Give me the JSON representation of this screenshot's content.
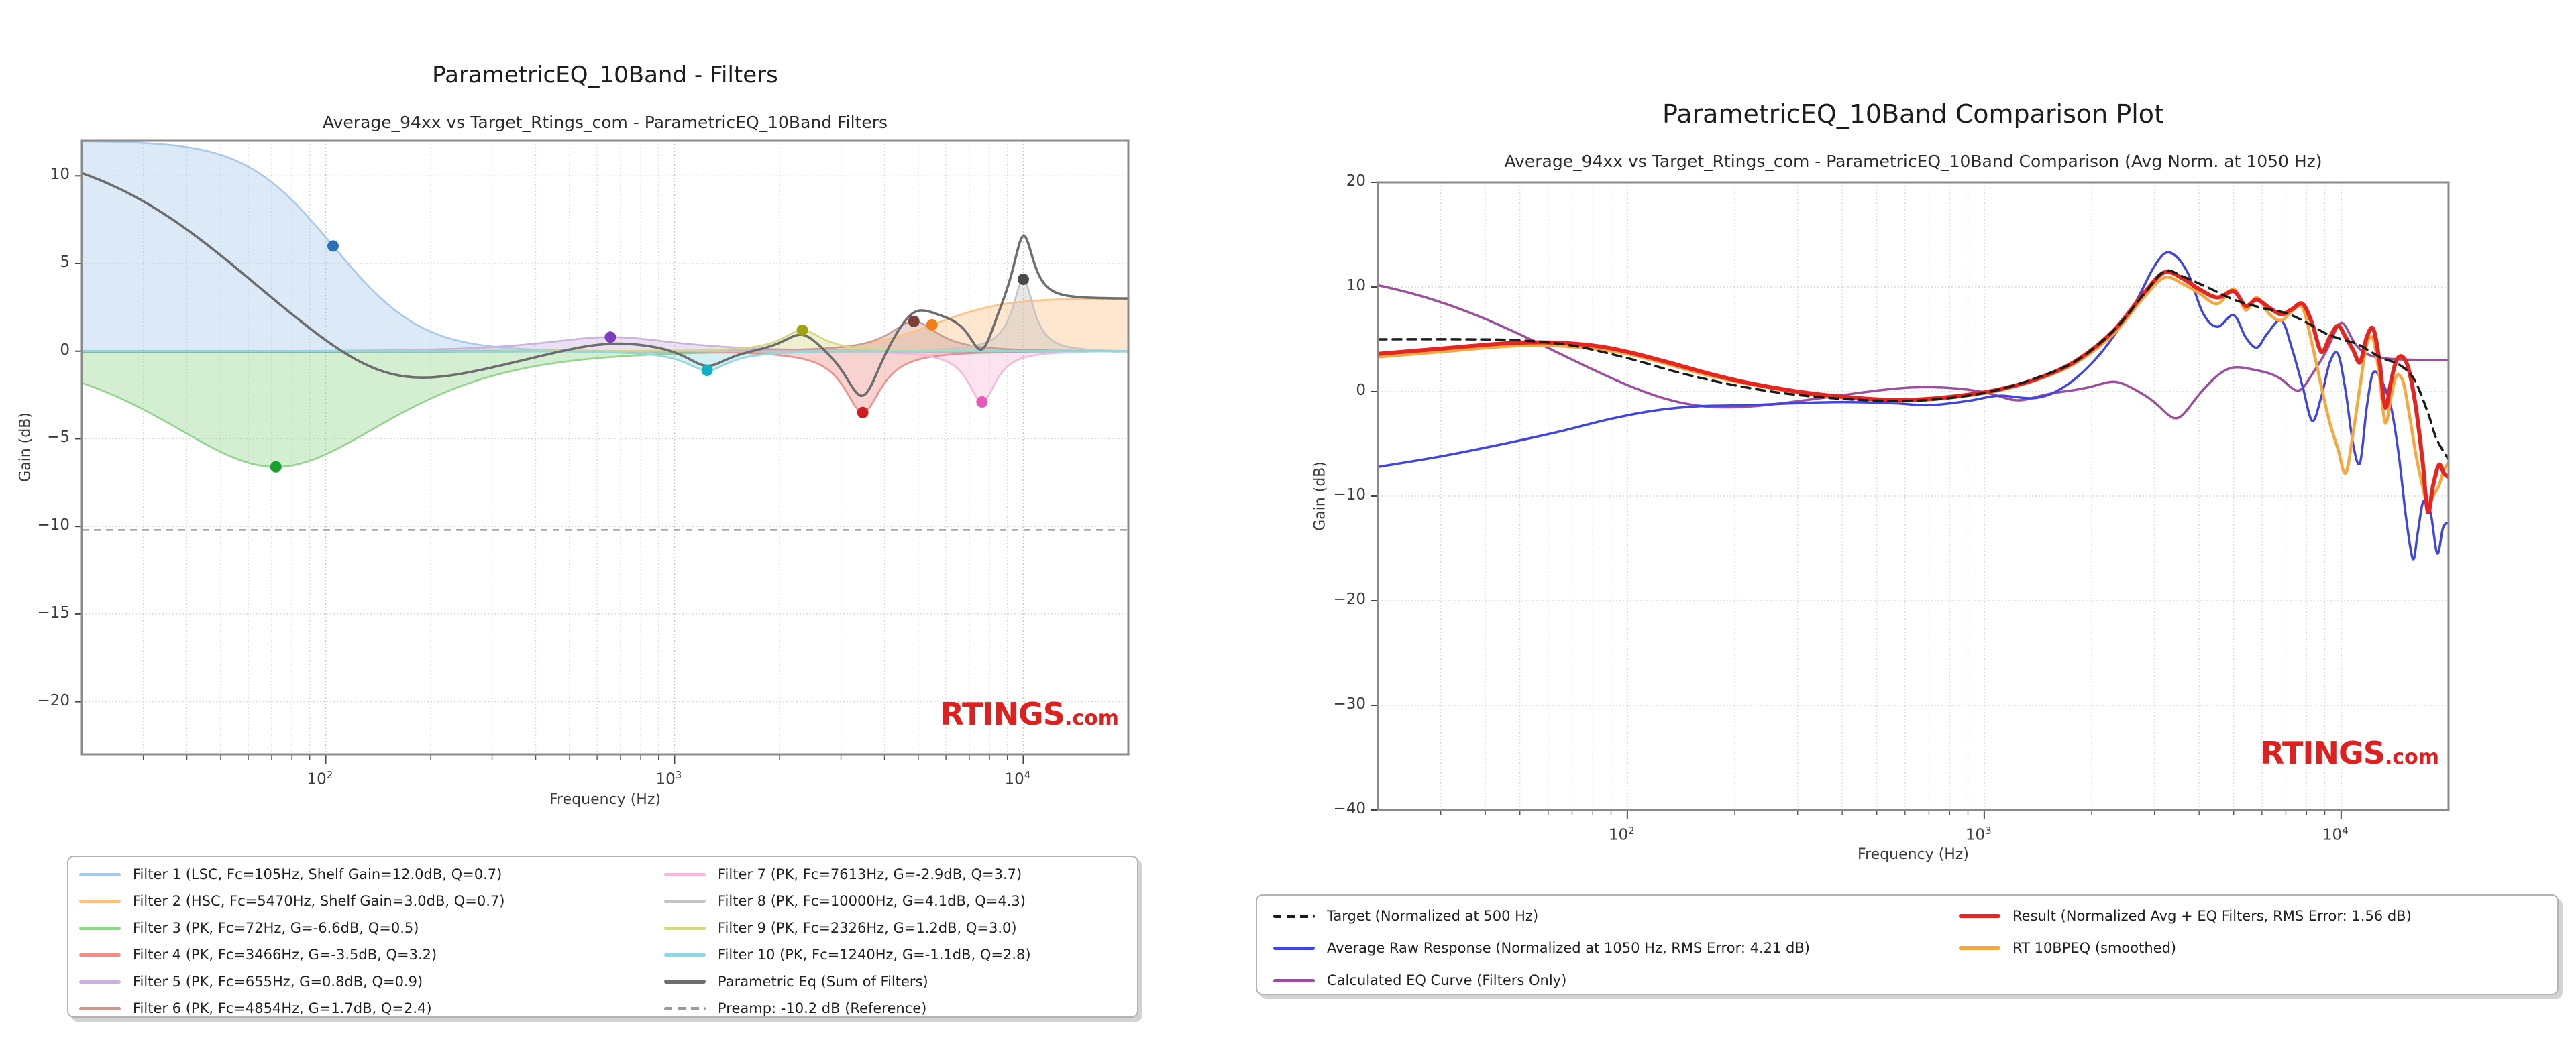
{
  "page": {
    "background": "#ffffff"
  },
  "chart_data": [
    {
      "id": "filters-plot",
      "type": "line",
      "title": "ParametricEQ_10Band - Filters",
      "subtitle": "Average_94xx vs Target_Rtings_com - ParametricEQ_10Band Filters",
      "xlabel": "Frequency (Hz)",
      "ylabel": "Gain (dB)",
      "x_scale": "log",
      "x_range_hz": [
        20,
        20000
      ],
      "x_tick_exponents": [
        2,
        3,
        4
      ],
      "y_range_db": [
        -23,
        12
      ],
      "y_ticks": [
        10,
        5,
        0,
        -5,
        -10,
        -15,
        -20
      ],
      "grid": true,
      "legend_position": "below",
      "zero_line_color": "#2e8b6e",
      "watermark_main": "RTINGS",
      "watermark_sub": ".com",
      "watermark_color": "#e0201e",
      "filters": [
        {
          "label": "Filter 1 (LSC, Fc=105Hz, Shelf Gain=12.0dB, Q=0.7)",
          "type": "LSC",
          "fc_hz": 105,
          "gain_db": 12.0,
          "q": 0.7,
          "line_color": "#a8c8e8",
          "marker_color": "#2a72b5"
        },
        {
          "label": "Filter 2 (HSC, Fc=5470Hz, Shelf Gain=3.0dB, Q=0.7)",
          "type": "HSC",
          "fc_hz": 5470,
          "gain_db": 3.0,
          "q": 0.7,
          "line_color": "#ffc184",
          "marker_color": "#f07e12"
        },
        {
          "label": "Filter 3 (PK, Fc=72Hz, G=-6.6dB, Q=0.5)",
          "type": "PK",
          "fc_hz": 72,
          "gain_db": -6.6,
          "q": 0.5,
          "line_color": "#93d48c",
          "marker_color": "#18a02c"
        },
        {
          "label": "Filter 4 (PK, Fc=3466Hz, G=-3.5dB, Q=3.2)",
          "type": "PK",
          "fc_hz": 3466,
          "gain_db": -3.5,
          "q": 3.2,
          "line_color": "#ee8e88",
          "marker_color": "#cf1c1c"
        },
        {
          "label": "Filter 5 (PK, Fc=655Hz, G=0.8dB, Q=0.9)",
          "type": "PK",
          "fc_hz": 655,
          "gain_db": 0.8,
          "q": 0.9,
          "line_color": "#c9b3dd",
          "marker_color": "#7d3fbe"
        },
        {
          "label": "Filter 6 (PK, Fc=4854Hz, G=1.7dB, Q=2.4)",
          "type": "PK",
          "fc_hz": 4854,
          "gain_db": 1.7,
          "q": 2.4,
          "line_color": "#c69c94",
          "marker_color": "#7d4037"
        },
        {
          "label": "Filter 7 (PK, Fc=7613Hz, G=-2.9dB, Q=3.7)",
          "type": "PK",
          "fc_hz": 7613,
          "gain_db": -2.9,
          "q": 3.7,
          "line_color": "#f5b8d8",
          "marker_color": "#e858b8"
        },
        {
          "label": "Filter 8 (PK, Fc=10000Hz, G=4.1dB, Q=4.3)",
          "type": "PK",
          "fc_hz": 10000,
          "gain_db": 4.1,
          "q": 4.3,
          "line_color": "#c4c4c4",
          "marker_color": "#4a4a4a"
        },
        {
          "label": "Filter 9 (PK, Fc=2326Hz, G=1.2dB, Q=3.0)",
          "type": "PK",
          "fc_hz": 2326,
          "gain_db": 1.2,
          "q": 3.0,
          "line_color": "#d6d687",
          "marker_color": "#a2a216"
        },
        {
          "label": "Filter 10 (PK, Fc=1240Hz, G=-1.1dB, Q=2.8)",
          "type": "PK",
          "fc_hz": 1240,
          "gain_db": -1.1,
          "q": 2.8,
          "line_color": "#8fd8e2",
          "marker_color": "#13b0c4"
        }
      ],
      "sum_curve": {
        "label": "Parametric Eq (Sum of Filters)",
        "color": "#6d6d6d"
      },
      "preamp": {
        "label": "Preamp: -10.2 dB (Reference)",
        "value_db": -10.2,
        "color": "#999999"
      }
    },
    {
      "id": "comparison-plot",
      "type": "line",
      "title": "ParametricEQ_10Band Comparison Plot",
      "subtitle": "Average_94xx vs Target_Rtings_com - ParametricEQ_10Band Comparison (Avg Norm. at 1050 Hz)",
      "xlabel": "Frequency (Hz)",
      "ylabel": "Gain (dB)",
      "x_scale": "log",
      "x_range_hz": [
        20,
        20000
      ],
      "x_tick_exponents": [
        2,
        3,
        4
      ],
      "y_range_db": [
        -40,
        20
      ],
      "y_ticks": [
        20,
        10,
        0,
        -10,
        -20,
        -30,
        -40
      ],
      "grid": true,
      "legend_position": "below",
      "watermark_main": "RTINGS",
      "watermark_sub": ".com",
      "watermark_color": "#e0201e",
      "series": [
        {
          "name": "target",
          "label": "Target (Normalized at 500 Hz)",
          "color": "#1b1b1b",
          "dashed": true,
          "width": 3.5,
          "points": [
            [
              20,
              5.0
            ],
            [
              35,
              5.0
            ],
            [
              50,
              4.9
            ],
            [
              70,
              4.4
            ],
            [
              100,
              3.2
            ],
            [
              140,
              1.8
            ],
            [
              200,
              0.6
            ],
            [
              280,
              -0.2
            ],
            [
              400,
              -0.7
            ],
            [
              550,
              -0.9
            ],
            [
              700,
              -0.8
            ],
            [
              900,
              -0.4
            ],
            [
              1100,
              0.2
            ],
            [
              1400,
              1.3
            ],
            [
              1800,
              2.9
            ],
            [
              2300,
              5.8
            ],
            [
              2800,
              9.3
            ],
            [
              3200,
              11.5
            ],
            [
              3600,
              11.0
            ],
            [
              4200,
              10.0
            ],
            [
              5000,
              8.8
            ],
            [
              6000,
              8.0
            ],
            [
              7000,
              7.5
            ],
            [
              8000,
              6.6
            ],
            [
              9000,
              5.6
            ],
            [
              10000,
              5.0
            ],
            [
              11000,
              4.6
            ],
            [
              12000,
              3.9
            ],
            [
              13000,
              3.2
            ],
            [
              14500,
              2.6
            ],
            [
              16000,
              1.2
            ],
            [
              17500,
              -2.0
            ],
            [
              18500,
              -4.5
            ],
            [
              20000,
              -6.5
            ]
          ]
        },
        {
          "name": "average_raw",
          "label": "Average Raw Response (Normalized at 1050 Hz, RMS Error: 4.21 dB)",
          "color": "#4145e0",
          "dashed": false,
          "width": 3.5,
          "points": [
            [
              20,
              -7.2
            ],
            [
              30,
              -6.2
            ],
            [
              45,
              -5.0
            ],
            [
              65,
              -3.8
            ],
            [
              90,
              -2.6
            ],
            [
              120,
              -1.8
            ],
            [
              160,
              -1.4
            ],
            [
              220,
              -1.3
            ],
            [
              300,
              -1.1
            ],
            [
              400,
              -1.0
            ],
            [
              550,
              -1.1
            ],
            [
              700,
              -1.3
            ],
            [
              900,
              -0.9
            ],
            [
              1100,
              -0.4
            ],
            [
              1400,
              -0.6
            ],
            [
              1700,
              0.6
            ],
            [
              2100,
              3.5
            ],
            [
              2600,
              8.0
            ],
            [
              3000,
              12.0
            ],
            [
              3300,
              13.3
            ],
            [
              3700,
              11.5
            ],
            [
              4100,
              7.5
            ],
            [
              4500,
              6.2
            ],
            [
              5000,
              7.3
            ],
            [
              5400,
              5.2
            ],
            [
              5800,
              4.2
            ],
            [
              6200,
              5.5
            ],
            [
              6800,
              6.8
            ],
            [
              7300,
              4.0
            ],
            [
              7800,
              0.5
            ],
            [
              8300,
              -2.8
            ],
            [
              8800,
              -0.5
            ],
            [
              9300,
              2.8
            ],
            [
              9800,
              3.6
            ],
            [
              10300,
              0.0
            ],
            [
              10800,
              -5.0
            ],
            [
              11300,
              -6.8
            ],
            [
              11800,
              -1.5
            ],
            [
              12300,
              1.8
            ],
            [
              13000,
              1.0
            ],
            [
              13800,
              -1.5
            ],
            [
              14500,
              -6.0
            ],
            [
              15200,
              -12.0
            ],
            [
              15900,
              -16.0
            ],
            [
              16400,
              -13.5
            ],
            [
              17000,
              -10.5
            ],
            [
              17800,
              -11.5
            ],
            [
              18600,
              -15.5
            ],
            [
              19300,
              -13.0
            ],
            [
              20000,
              -12.5
            ]
          ]
        },
        {
          "name": "calculated_eq",
          "label": "Calculated EQ Curve (Filters Only)",
          "color": "#9c4f9c",
          "dashed": false,
          "width": 3.5,
          "source": "sum_of_filters",
          "points": []
        },
        {
          "name": "result",
          "label": "Result (Normalized Avg + EQ Filters, RMS Error: 1.56 dB)",
          "color": "#e42522",
          "dashed": false,
          "width": 6,
          "points": [
            [
              20,
              3.6
            ],
            [
              30,
              4.1
            ],
            [
              45,
              4.6
            ],
            [
              60,
              4.7
            ],
            [
              80,
              4.4
            ],
            [
              100,
              3.8
            ],
            [
              130,
              2.8
            ],
            [
              170,
              1.7
            ],
            [
              220,
              0.8
            ],
            [
              300,
              0.0
            ],
            [
              400,
              -0.5
            ],
            [
              550,
              -0.8
            ],
            [
              700,
              -0.7
            ],
            [
              900,
              -0.3
            ],
            [
              1100,
              0.2
            ],
            [
              1400,
              1.2
            ],
            [
              1800,
              2.9
            ],
            [
              2300,
              5.8
            ],
            [
              2800,
              9.4
            ],
            [
              3200,
              11.4
            ],
            [
              3600,
              10.8
            ],
            [
              4000,
              9.8
            ],
            [
              4500,
              9.0
            ],
            [
              5000,
              9.6
            ],
            [
              5400,
              8.2
            ],
            [
              5800,
              8.8
            ],
            [
              6300,
              8.0
            ],
            [
              6800,
              7.4
            ],
            [
              7300,
              7.9
            ],
            [
              7800,
              8.4
            ],
            [
              8300,
              6.5
            ],
            [
              8800,
              3.8
            ],
            [
              9300,
              5.2
            ],
            [
              9800,
              6.3
            ],
            [
              10300,
              5.2
            ],
            [
              10800,
              4.0
            ],
            [
              11300,
              2.8
            ],
            [
              11800,
              5.2
            ],
            [
              12300,
              6.0
            ],
            [
              12800,
              3.0
            ],
            [
              13300,
              -1.5
            ],
            [
              13800,
              1.0
            ],
            [
              14300,
              3.0
            ],
            [
              14900,
              3.3
            ],
            [
              15500,
              2.0
            ],
            [
              16200,
              -1.5
            ],
            [
              16900,
              -6.5
            ],
            [
              17500,
              -11.5
            ],
            [
              18100,
              -9.0
            ],
            [
              18800,
              -7.0
            ],
            [
              19400,
              -7.8
            ],
            [
              20000,
              -8.2
            ]
          ]
        },
        {
          "name": "rt_10bpeq",
          "label": "RT 10BPEQ (smoothed)",
          "color": "#f6a83f",
          "dashed": false,
          "width": 4.5,
          "points": [
            [
              20,
              3.3
            ],
            [
              30,
              3.8
            ],
            [
              45,
              4.3
            ],
            [
              60,
              4.4
            ],
            [
              80,
              4.1
            ],
            [
              100,
              3.6
            ],
            [
              130,
              2.6
            ],
            [
              170,
              1.5
            ],
            [
              220,
              0.7
            ],
            [
              300,
              -0.1
            ],
            [
              400,
              -0.6
            ],
            [
              550,
              -0.9
            ],
            [
              700,
              -0.8
            ],
            [
              900,
              -0.4
            ],
            [
              1100,
              0.1
            ],
            [
              1400,
              1.1
            ],
            [
              1800,
              2.7
            ],
            [
              2300,
              5.5
            ],
            [
              2800,
              9.0
            ],
            [
              3200,
              10.9
            ],
            [
              3600,
              10.3
            ],
            [
              4000,
              9.4
            ],
            [
              4500,
              8.4
            ],
            [
              5000,
              9.8
            ],
            [
              5400,
              7.8
            ],
            [
              5800,
              9.0
            ],
            [
              6300,
              7.4
            ],
            [
              6800,
              6.8
            ],
            [
              7300,
              7.7
            ],
            [
              7800,
              8.0
            ],
            [
              8300,
              4.5
            ],
            [
              8800,
              0.5
            ],
            [
              9300,
              -3.0
            ],
            [
              9800,
              -5.5
            ],
            [
              10300,
              -7.8
            ],
            [
              10800,
              -4.0
            ],
            [
              11300,
              0.5
            ],
            [
              11800,
              4.5
            ],
            [
              12300,
              5.0
            ],
            [
              12800,
              1.5
            ],
            [
              13300,
              -3.0
            ],
            [
              13800,
              -0.5
            ],
            [
              14300,
              1.5
            ],
            [
              14900,
              1.0
            ],
            [
              15500,
              -2.0
            ],
            [
              16200,
              -6.0
            ],
            [
              16900,
              -9.0
            ],
            [
              17500,
              -11.0
            ],
            [
              18100,
              -10.0
            ],
            [
              18800,
              -9.0
            ],
            [
              19400,
              -7.5
            ],
            [
              20000,
              -6.8
            ]
          ]
        }
      ]
    }
  ]
}
